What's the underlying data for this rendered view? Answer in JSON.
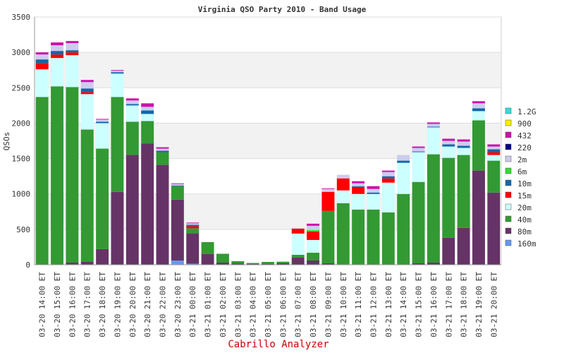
{
  "chart_data": {
    "type": "bar",
    "stacked": true,
    "title": "Virginia QSO Party 2010 - Band Usage",
    "ylabel": "QSOs",
    "xlabel": "",
    "ylim": [
      0,
      3500
    ],
    "yticks": [
      0,
      500,
      1000,
      1500,
      2000,
      2500,
      3000,
      3500
    ],
    "grid": "horizontal alternating bands",
    "legend_position": "right",
    "categories": [
      "03-20 14:00 ET",
      "03-20 15:00 ET",
      "03-20 16:00 ET",
      "03-20 17:00 ET",
      "03-20 18:00 ET",
      "03-20 19:00 ET",
      "03-20 20:00 ET",
      "03-20 21:00 ET",
      "03-20 22:00 ET",
      "03-20 23:00 ET",
      "03-21 00:00 ET",
      "03-21 01:00 ET",
      "03-21 02:00 ET",
      "03-21 03:00 ET",
      "03-21 04:00 ET",
      "03-21 05:00 ET",
      "03-21 06:00 ET",
      "03-21 07:00 ET",
      "03-21 08:00 ET",
      "03-21 09:00 ET",
      "03-21 10:00 ET",
      "03-21 11:00 ET",
      "03-21 12:00 ET",
      "03-21 13:00 ET",
      "03-21 14:00 ET",
      "03-21 15:00 ET",
      "03-21 16:00 ET",
      "03-21 17:00 ET",
      "03-21 18:00 ET",
      "03-21 19:00 ET",
      "03-21 20:00 ET"
    ],
    "series": [
      {
        "name": "160m",
        "color": "#6699ee",
        "values": [
          0,
          0,
          0,
          0,
          0,
          0,
          0,
          0,
          0,
          60,
          15,
          0,
          0,
          0,
          0,
          0,
          0,
          0,
          0,
          0,
          0,
          0,
          0,
          0,
          0,
          0,
          0,
          0,
          0,
          0,
          0
        ]
      },
      {
        "name": "80m",
        "color": "#663366",
        "values": [
          0,
          0,
          30,
          40,
          220,
          1030,
          1550,
          1710,
          1410,
          860,
          430,
          150,
          30,
          15,
          10,
          10,
          20,
          100,
          60,
          20,
          0,
          0,
          0,
          0,
          0,
          20,
          30,
          380,
          520,
          1330,
          1020
        ]
      },
      {
        "name": "40m",
        "color": "#339933",
        "values": [
          2370,
          2520,
          2480,
          1870,
          1420,
          1340,
          470,
          320,
          180,
          190,
          70,
          170,
          125,
          35,
          15,
          30,
          20,
          40,
          110,
          740,
          870,
          780,
          780,
          740,
          1000,
          1150,
          1530,
          1130,
          1030,
          710,
          450
        ]
      },
      {
        "name": "20m",
        "color": "#ccffff",
        "values": [
          390,
          400,
          450,
          500,
          360,
          330,
          230,
          100,
          0,
          0,
          0,
          0,
          0,
          0,
          0,
          0,
          0,
          300,
          180,
          0,
          180,
          220,
          220,
          420,
          440,
          420,
          380,
          160,
          100,
          130,
          80
        ]
      },
      {
        "name": "15m",
        "color": "#ff0000",
        "values": [
          90,
          50,
          40,
          30,
          0,
          0,
          0,
          0,
          0,
          0,
          30,
          0,
          0,
          0,
          0,
          0,
          0,
          70,
          120,
          270,
          170,
          100,
          0,
          60,
          0,
          0,
          0,
          0,
          0,
          0,
          40
        ]
      },
      {
        "name": "10m",
        "color": "#1166aa",
        "values": [
          50,
          50,
          30,
          50,
          20,
          20,
          20,
          50,
          20,
          10,
          20,
          0,
          0,
          0,
          0,
          0,
          0,
          0,
          0,
          0,
          0,
          10,
          20,
          30,
          30,
          10,
          10,
          30,
          30,
          40,
          40
        ]
      },
      {
        "name": "6m",
        "color": "#33dd33",
        "values": [
          0,
          0,
          0,
          0,
          0,
          0,
          0,
          0,
          0,
          0,
          0,
          0,
          0,
          0,
          0,
          0,
          0,
          0,
          20,
          0,
          0,
          0,
          0,
          0,
          0,
          0,
          0,
          0,
          0,
          0,
          0
        ]
      },
      {
        "name": "2m",
        "color": "#ccccee",
        "values": [
          70,
          80,
          100,
          90,
          30,
          20,
          50,
          50,
          30,
          20,
          20,
          0,
          0,
          0,
          0,
          0,
          10,
          10,
          60,
          40,
          50,
          40,
          50,
          60,
          80,
          50,
          40,
          50,
          60,
          70,
          40
        ]
      },
      {
        "name": "220",
        "color": "#000088",
        "values": [
          0,
          0,
          0,
          0,
          0,
          0,
          0,
          0,
          0,
          0,
          0,
          0,
          0,
          0,
          0,
          0,
          0,
          0,
          0,
          0,
          0,
          0,
          0,
          0,
          0,
          0,
          0,
          0,
          0,
          0,
          0
        ]
      },
      {
        "name": "432",
        "color": "#cc11aa",
        "values": [
          30,
          40,
          30,
          30,
          10,
          10,
          30,
          50,
          20,
          10,
          10,
          0,
          0,
          0,
          0,
          0,
          0,
          0,
          30,
          10,
          0,
          30,
          40,
          20,
          0,
          20,
          20,
          30,
          30,
          30,
          30
        ]
      },
      {
        "name": "900",
        "color": "#ffee00",
        "values": [
          0,
          0,
          0,
          0,
          0,
          0,
          0,
          0,
          0,
          0,
          0,
          0,
          0,
          0,
          0,
          0,
          0,
          0,
          0,
          0,
          0,
          0,
          0,
          0,
          0,
          0,
          0,
          0,
          0,
          0,
          0
        ]
      },
      {
        "name": "1.2G",
        "color": "#33dddd",
        "values": [
          0,
          0,
          0,
          0,
          0,
          0,
          0,
          0,
          0,
          0,
          0,
          0,
          0,
          0,
          0,
          0,
          0,
          0,
          0,
          0,
          0,
          0,
          0,
          0,
          0,
          0,
          0,
          0,
          0,
          0,
          0
        ]
      }
    ]
  },
  "footer": "Cabrillo Analyzer"
}
